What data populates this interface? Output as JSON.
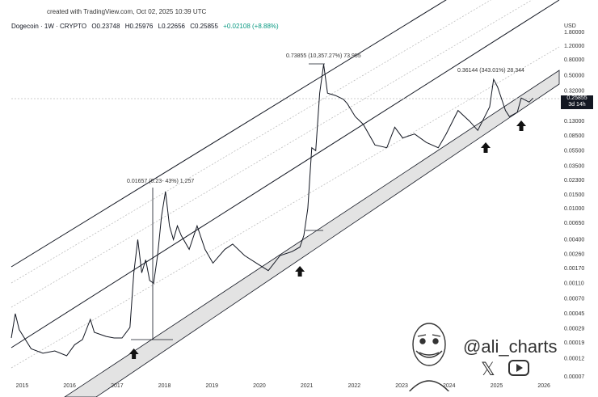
{
  "header": {
    "created_line": "created with TradingView.com, Oct 02, 2025 10:39 UTC",
    "symbol": "Dogecoin · 1W · CRYPTO",
    "open": "O0.23748",
    "high": "H0.25976",
    "low": "L0.22656",
    "close": "C0.25855",
    "change": "+0.02108 (+8.88%)"
  },
  "price_tag": {
    "price": "0.25855",
    "countdown": "3d 14h"
  },
  "watermark": {
    "handle": "@ali_charts"
  },
  "annotations": {
    "label_2017": "0.01657 (0.23‑ 43%) 1,257",
    "label_2021": "0.73855 (10,357.27%) 73,955",
    "label_2025": "0.36144 (343.01%) 28,344"
  },
  "colors": {
    "price_line": "#131722",
    "channel": "#131722",
    "band_fill": "#e3e3e3",
    "dotted": "#bdbdbd",
    "green": "#089981"
  },
  "chart_data": {
    "type": "line",
    "title": "",
    "xlabel": "",
    "ylabel": "",
    "currency": "USD",
    "scale": "log",
    "ylim": [
      7e-05,
      1.8
    ],
    "x_ticks": [
      "2015",
      "2016",
      "2017",
      "2018",
      "2019",
      "2020",
      "2021",
      "2022",
      "2023",
      "2024",
      "2025",
      "2026"
    ],
    "y_ticks": [
      1.8,
      1.2,
      0.8,
      0.5,
      0.32,
      0.2,
      0.13,
      0.085,
      0.055,
      0.035,
      0.023,
      0.015,
      0.01,
      0.0065,
      0.004,
      0.0026,
      0.0017,
      0.0011,
      0.0007,
      0.00045,
      0.00029,
      0.00019,
      0.00012,
      7e-05
    ],
    "y_tick_labels": [
      "1.80000",
      "1.20000",
      "0.80000",
      "0.50000",
      "0.32000",
      "0.20000",
      "0.13000",
      "0.08500",
      "0.05500",
      "0.03500",
      "0.02300",
      "0.01500",
      "0.01000",
      "0.00650",
      "0.00400",
      "0.00260",
      "0.00170",
      "0.00110",
      "0.00070",
      "0.00045",
      "0.00029",
      "0.00019",
      "0.00012",
      "0.00007"
    ],
    "series": [
      {
        "name": "",
        "points": [
          [
            "2014-10",
            0.00022
          ],
          [
            "2014-11",
            0.00045
          ],
          [
            "2014-12",
            0.00028
          ],
          [
            "2015-03",
            0.00016
          ],
          [
            "2015-06",
            0.00014
          ],
          [
            "2015-09",
            0.00015
          ],
          [
            "2015-12",
            0.00013
          ],
          [
            "2016-02",
            0.00018
          ],
          [
            "2016-04",
            0.00021
          ],
          [
            "2016-06",
            0.00038
          ],
          [
            "2016-07",
            0.00026
          ],
          [
            "2016-10",
            0.00023
          ],
          [
            "2016-12",
            0.00022
          ],
          [
            "2017-02",
            0.00022
          ],
          [
            "2017-04",
            0.0003
          ],
          [
            "2017-05",
            0.0015
          ],
          [
            "2017-06",
            0.004
          ],
          [
            "2017-07",
            0.0015
          ],
          [
            "2017-08",
            0.0022
          ],
          [
            "2017-09",
            0.0012
          ],
          [
            "2017-10",
            0.0011
          ],
          [
            "2017-11",
            0.0025
          ],
          [
            "2017-12",
            0.008
          ],
          [
            "2018-01",
            0.0165
          ],
          [
            "2018-02",
            0.006
          ],
          [
            "2018-03",
            0.004
          ],
          [
            "2018-04",
            0.006
          ],
          [
            "2018-05",
            0.0045
          ],
          [
            "2018-07",
            0.003
          ],
          [
            "2018-09",
            0.006
          ],
          [
            "2018-11",
            0.003
          ],
          [
            "2019-01",
            0.002
          ],
          [
            "2019-04",
            0.003
          ],
          [
            "2019-06",
            0.0035
          ],
          [
            "2019-09",
            0.0025
          ],
          [
            "2019-12",
            0.002
          ],
          [
            "2020-03",
            0.0016
          ],
          [
            "2020-06",
            0.0025
          ],
          [
            "2020-09",
            0.0028
          ],
          [
            "2020-11",
            0.0032
          ],
          [
            "2020-12",
            0.0045
          ],
          [
            "2021-01",
            0.01
          ],
          [
            "2021-02",
            0.06
          ],
          [
            "2021-03",
            0.055
          ],
          [
            "2021-04",
            0.3
          ],
          [
            "2021-05",
            0.7
          ],
          [
            "2021-06",
            0.3
          ],
          [
            "2021-08",
            0.28
          ],
          [
            "2021-10",
            0.25
          ],
          [
            "2021-11",
            0.22
          ],
          [
            "2022-01",
            0.15
          ],
          [
            "2022-03",
            0.12
          ],
          [
            "2022-06",
            0.065
          ],
          [
            "2022-09",
            0.06
          ],
          [
            "2022-11",
            0.11
          ],
          [
            "2023-01",
            0.08
          ],
          [
            "2023-04",
            0.09
          ],
          [
            "2023-07",
            0.07
          ],
          [
            "2023-10",
            0.06
          ],
          [
            "2023-12",
            0.09
          ],
          [
            "2024-03",
            0.18
          ],
          [
            "2024-06",
            0.13
          ],
          [
            "2024-08",
            0.1
          ],
          [
            "2024-11",
            0.2
          ],
          [
            "2024-12",
            0.45
          ],
          [
            "2025-01",
            0.36
          ],
          [
            "2025-03",
            0.18
          ],
          [
            "2025-04",
            0.15
          ],
          [
            "2025-06",
            0.17
          ],
          [
            "2025-07",
            0.26
          ],
          [
            "2025-09",
            0.23
          ],
          [
            "2025-10",
            0.259
          ]
        ]
      }
    ],
    "bullish_arrows": [
      "2017-05",
      "2020-11",
      "2024-10",
      "2025-07"
    ],
    "grid": false,
    "legend": "none"
  }
}
